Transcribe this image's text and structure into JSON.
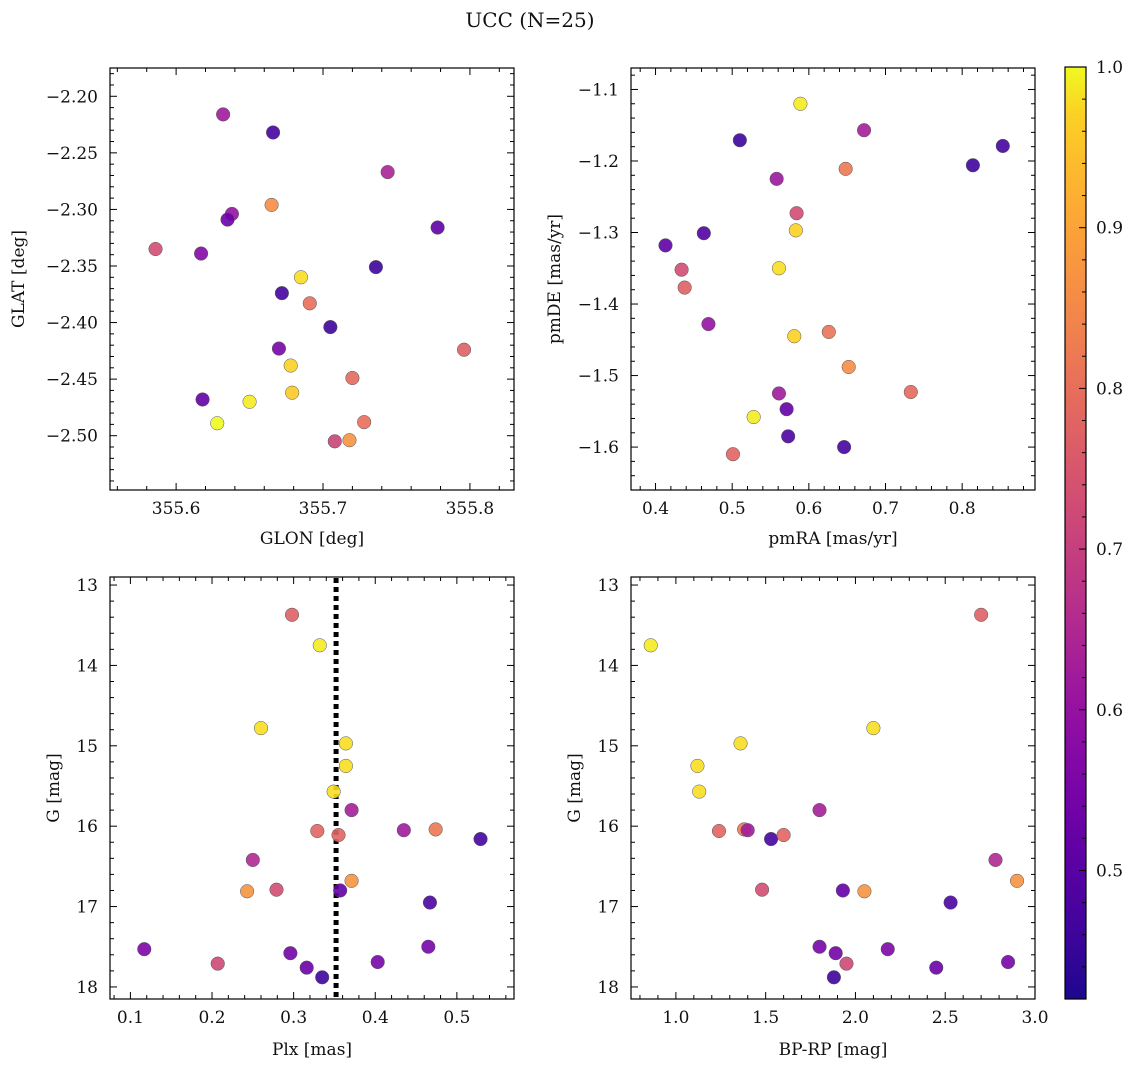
{
  "figure_title": "UCC (N=25)",
  "colorbar": {
    "min": 0.42,
    "max": 1.0,
    "ticks": [
      0.5,
      0.6,
      0.7,
      0.8,
      0.9,
      1.0
    ],
    "tick_labels": [
      "0.5",
      "0.6",
      "0.7",
      "0.8",
      "0.9",
      "1.0"
    ],
    "colormap": "plasma"
  },
  "chart_data": [
    {
      "type": "scatter",
      "id": "glon-glat",
      "xlabel": "GLON [deg]",
      "ylabel": "GLAT [deg]",
      "xlim": [
        355.555,
        355.83
      ],
      "ylim": [
        -2.548,
        -2.175
      ],
      "y_inverted": false,
      "xticks": [
        355.6,
        355.7,
        355.8
      ],
      "xtick_labels": [
        "355.6",
        "355.7",
        "355.8"
      ],
      "yticks": [
        -2.5,
        -2.45,
        -2.4,
        -2.35,
        -2.3,
        -2.25,
        -2.2
      ],
      "ytick_labels": [
        "−2.50",
        "−2.45",
        "−2.40",
        "−2.35",
        "−2.30",
        "−2.25",
        "−2.20"
      ],
      "points": [
        {
          "x": 355.632,
          "y": -2.216,
          "c": 0.62
        },
        {
          "x": 355.666,
          "y": -2.232,
          "c": 0.47
        },
        {
          "x": 355.744,
          "y": -2.267,
          "c": 0.64
        },
        {
          "x": 355.638,
          "y": -2.304,
          "c": 0.6
        },
        {
          "x": 355.635,
          "y": -2.309,
          "c": 0.53
        },
        {
          "x": 355.665,
          "y": -2.296,
          "c": 0.86
        },
        {
          "x": 355.586,
          "y": -2.335,
          "c": 0.73
        },
        {
          "x": 355.617,
          "y": -2.339,
          "c": 0.57
        },
        {
          "x": 355.778,
          "y": -2.316,
          "c": 0.51
        },
        {
          "x": 355.736,
          "y": -2.351,
          "c": 0.46
        },
        {
          "x": 355.685,
          "y": -2.36,
          "c": 0.98
        },
        {
          "x": 355.672,
          "y": -2.374,
          "c": 0.47
        },
        {
          "x": 355.691,
          "y": -2.383,
          "c": 0.8
        },
        {
          "x": 355.705,
          "y": -2.404,
          "c": 0.46
        },
        {
          "x": 355.67,
          "y": -2.423,
          "c": 0.55
        },
        {
          "x": 355.796,
          "y": -2.424,
          "c": 0.77
        },
        {
          "x": 355.678,
          "y": -2.438,
          "c": 0.97
        },
        {
          "x": 355.72,
          "y": -2.449,
          "c": 0.79
        },
        {
          "x": 355.679,
          "y": -2.462,
          "c": 0.96
        },
        {
          "x": 355.618,
          "y": -2.468,
          "c": 0.52
        },
        {
          "x": 355.65,
          "y": -2.47,
          "c": 0.99
        },
        {
          "x": 355.628,
          "y": -2.489,
          "c": 1.0
        },
        {
          "x": 355.728,
          "y": -2.488,
          "c": 0.8
        },
        {
          "x": 355.718,
          "y": -2.504,
          "c": 0.87
        },
        {
          "x": 355.708,
          "y": -2.505,
          "c": 0.71
        }
      ]
    },
    {
      "type": "scatter",
      "id": "pmra-pmde",
      "xlabel": "pmRA [mas/yr]",
      "ylabel": "pmDE [mas/yr]",
      "xlim": [
        0.368,
        0.895
      ],
      "ylim": [
        -1.66,
        -1.07
      ],
      "y_inverted": false,
      "xticks": [
        0.4,
        0.5,
        0.6,
        0.7,
        0.8
      ],
      "xtick_labels": [
        "0.4",
        "0.5",
        "0.6",
        "0.7",
        "0.8"
      ],
      "yticks": [
        -1.6,
        -1.5,
        -1.4,
        -1.3,
        -1.2,
        -1.1
      ],
      "ytick_labels": [
        "−1.6",
        "−1.5",
        "−1.4",
        "−1.3",
        "−1.2",
        "−1.1"
      ],
      "points": [
        {
          "x": 0.589,
          "y": -1.12,
          "c": 0.99
        },
        {
          "x": 0.672,
          "y": -1.157,
          "c": 0.63
        },
        {
          "x": 0.51,
          "y": -1.171,
          "c": 0.46
        },
        {
          "x": 0.853,
          "y": -1.179,
          "c": 0.47
        },
        {
          "x": 0.814,
          "y": -1.206,
          "c": 0.46
        },
        {
          "x": 0.648,
          "y": -1.211,
          "c": 0.82
        },
        {
          "x": 0.558,
          "y": -1.225,
          "c": 0.61
        },
        {
          "x": 0.584,
          "y": -1.273,
          "c": 0.73
        },
        {
          "x": 0.583,
          "y": -1.297,
          "c": 0.97
        },
        {
          "x": 0.463,
          "y": -1.301,
          "c": 0.49
        },
        {
          "x": 0.413,
          "y": -1.318,
          "c": 0.51
        },
        {
          "x": 0.434,
          "y": -1.352,
          "c": 0.73
        },
        {
          "x": 0.561,
          "y": -1.35,
          "c": 0.98
        },
        {
          "x": 0.438,
          "y": -1.377,
          "c": 0.77
        },
        {
          "x": 0.469,
          "y": -1.428,
          "c": 0.6
        },
        {
          "x": 0.626,
          "y": -1.439,
          "c": 0.81
        },
        {
          "x": 0.581,
          "y": -1.445,
          "c": 0.97
        },
        {
          "x": 0.652,
          "y": -1.488,
          "c": 0.86
        },
        {
          "x": 0.733,
          "y": -1.523,
          "c": 0.79
        },
        {
          "x": 0.561,
          "y": -1.525,
          "c": 0.62
        },
        {
          "x": 0.571,
          "y": -1.547,
          "c": 0.52
        },
        {
          "x": 0.528,
          "y": -1.558,
          "c": 0.99
        },
        {
          "x": 0.573,
          "y": -1.585,
          "c": 0.48
        },
        {
          "x": 0.646,
          "y": -1.6,
          "c": 0.47
        },
        {
          "x": 0.501,
          "y": -1.61,
          "c": 0.78
        }
      ]
    },
    {
      "type": "scatter",
      "id": "plx-g",
      "xlabel": "Plx [mas]",
      "ylabel": "G [mag]",
      "xlim": [
        0.075,
        0.57
      ],
      "ylim": [
        18.15,
        12.9
      ],
      "y_inverted": true,
      "xticks": [
        0.1,
        0.2,
        0.3,
        0.4,
        0.5
      ],
      "xtick_labels": [
        "0.1",
        "0.2",
        "0.3",
        "0.4",
        "0.5"
      ],
      "yticks": [
        13,
        14,
        15,
        16,
        17,
        18
      ],
      "ytick_labels": [
        "13",
        "14",
        "15",
        "16",
        "17",
        "18"
      ],
      "vline": {
        "x": 0.352,
        "style": "dotted"
      },
      "points": [
        {
          "x": 0.298,
          "y": 13.37,
          "c": 0.77
        },
        {
          "x": 0.332,
          "y": 13.75,
          "c": 0.99
        },
        {
          "x": 0.26,
          "y": 14.78,
          "c": 0.98
        },
        {
          "x": 0.364,
          "y": 14.97,
          "c": 0.98
        },
        {
          "x": 0.364,
          "y": 15.25,
          "c": 0.98
        },
        {
          "x": 0.349,
          "y": 15.57,
          "c": 0.98
        },
        {
          "x": 0.371,
          "y": 15.8,
          "c": 0.63
        },
        {
          "x": 0.329,
          "y": 16.06,
          "c": 0.78
        },
        {
          "x": 0.355,
          "y": 16.11,
          "c": 0.78
        },
        {
          "x": 0.435,
          "y": 16.05,
          "c": 0.62
        },
        {
          "x": 0.474,
          "y": 16.04,
          "c": 0.82
        },
        {
          "x": 0.529,
          "y": 16.16,
          "c": 0.47
        },
        {
          "x": 0.25,
          "y": 16.42,
          "c": 0.65
        },
        {
          "x": 0.243,
          "y": 16.81,
          "c": 0.87
        },
        {
          "x": 0.279,
          "y": 16.79,
          "c": 0.73
        },
        {
          "x": 0.357,
          "y": 16.8,
          "c": 0.52
        },
        {
          "x": 0.371,
          "y": 16.68,
          "c": 0.87
        },
        {
          "x": 0.467,
          "y": 16.95,
          "c": 0.48
        },
        {
          "x": 0.117,
          "y": 17.53,
          "c": 0.56
        },
        {
          "x": 0.207,
          "y": 17.71,
          "c": 0.72
        },
        {
          "x": 0.296,
          "y": 17.58,
          "c": 0.54
        },
        {
          "x": 0.316,
          "y": 17.76,
          "c": 0.53
        },
        {
          "x": 0.335,
          "y": 17.88,
          "c": 0.46
        },
        {
          "x": 0.403,
          "y": 17.69,
          "c": 0.55
        },
        {
          "x": 0.465,
          "y": 17.5,
          "c": 0.55
        }
      ]
    },
    {
      "type": "scatter",
      "id": "bprp-g",
      "xlabel": "BP-RP [mag]",
      "ylabel": "G [mag]",
      "xlim": [
        0.75,
        3.0
      ],
      "ylim": [
        18.15,
        12.9
      ],
      "y_inverted": true,
      "xticks": [
        1.0,
        1.5,
        2.0,
        2.5,
        3.0
      ],
      "xtick_labels": [
        "1.0",
        "1.5",
        "2.0",
        "2.5",
        "3.0"
      ],
      "yticks": [
        13,
        14,
        15,
        16,
        17,
        18
      ],
      "ytick_labels": [
        "13",
        "14",
        "15",
        "16",
        "17",
        "18"
      ],
      "points": [
        {
          "x": 2.7,
          "y": 13.37,
          "c": 0.77
        },
        {
          "x": 0.86,
          "y": 13.75,
          "c": 0.99
        },
        {
          "x": 2.1,
          "y": 14.78,
          "c": 0.98
        },
        {
          "x": 1.36,
          "y": 14.97,
          "c": 0.98
        },
        {
          "x": 1.12,
          "y": 15.25,
          "c": 0.98
        },
        {
          "x": 1.13,
          "y": 15.57,
          "c": 0.98
        },
        {
          "x": 1.8,
          "y": 15.8,
          "c": 0.63
        },
        {
          "x": 1.24,
          "y": 16.06,
          "c": 0.78
        },
        {
          "x": 1.38,
          "y": 16.04,
          "c": 0.82
        },
        {
          "x": 1.4,
          "y": 16.05,
          "c": 0.62
        },
        {
          "x": 1.53,
          "y": 16.16,
          "c": 0.47
        },
        {
          "x": 1.6,
          "y": 16.11,
          "c": 0.78
        },
        {
          "x": 2.78,
          "y": 16.42,
          "c": 0.65
        },
        {
          "x": 2.9,
          "y": 16.68,
          "c": 0.87
        },
        {
          "x": 1.48,
          "y": 16.79,
          "c": 0.73
        },
        {
          "x": 1.93,
          "y": 16.8,
          "c": 0.52
        },
        {
          "x": 2.05,
          "y": 16.81,
          "c": 0.87
        },
        {
          "x": 2.53,
          "y": 16.95,
          "c": 0.48
        },
        {
          "x": 1.8,
          "y": 17.5,
          "c": 0.55
        },
        {
          "x": 2.18,
          "y": 17.53,
          "c": 0.56
        },
        {
          "x": 1.89,
          "y": 17.58,
          "c": 0.54
        },
        {
          "x": 1.95,
          "y": 17.71,
          "c": 0.72
        },
        {
          "x": 2.85,
          "y": 17.69,
          "c": 0.55
        },
        {
          "x": 2.45,
          "y": 17.76,
          "c": 0.53
        },
        {
          "x": 1.88,
          "y": 17.88,
          "c": 0.46
        }
      ]
    }
  ]
}
